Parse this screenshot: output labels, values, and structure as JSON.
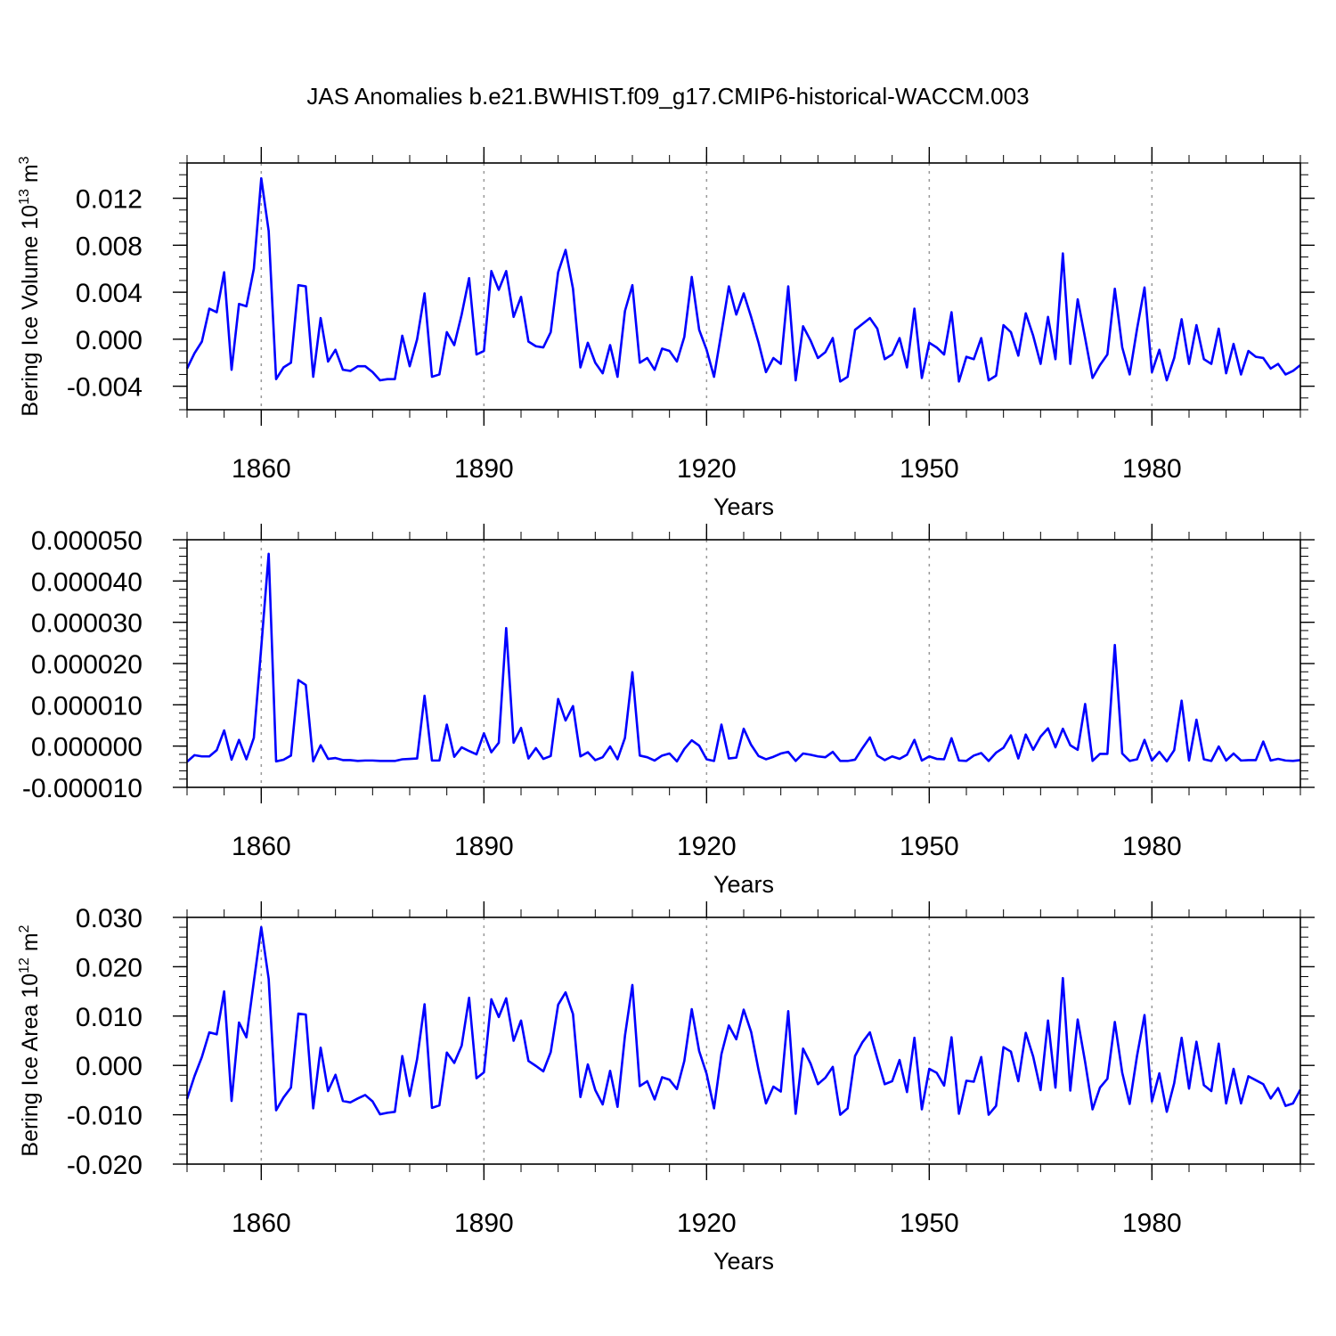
{
  "title": "JAS Anomalies b.e21.BWHIST.f09_g17.CMIP6-historical-WACCM.003",
  "chart_data": [
    {
      "type": "line",
      "title": "",
      "xlabel": "Years",
      "ylabel": {
        "text": "Bering Ice Volume 10",
        "sup": "13",
        "unit": " m",
        "unitsup": "3"
      },
      "xlim": [
        1850,
        2000
      ],
      "ylim": [
        -0.006,
        0.015
      ],
      "yticks": [
        -0.004,
        0.0,
        0.004,
        0.008,
        0.012
      ],
      "ytick_labels": [
        "-0.004",
        "0.000",
        "0.004",
        "0.008",
        "0.012"
      ],
      "ytick_minor_step": 0.001,
      "xticks": [
        1860,
        1890,
        1920,
        1950,
        1980
      ],
      "xtick_labels": [
        "1860",
        "1890",
        "1920",
        "1950",
        "1980"
      ],
      "xtick_minor_step": 5,
      "x_start": 1850,
      "color": "#0000ff",
      "values": [
        -0.0025,
        -0.0012,
        -0.0002,
        0.0026,
        0.0023,
        0.0057,
        -0.0026,
        0.003,
        0.0028,
        0.006,
        0.0137,
        0.0092,
        -0.0034,
        -0.0024,
        -0.002,
        0.0046,
        0.0045,
        -0.0032,
        0.0018,
        -0.0019,
        -0.0009,
        -0.0026,
        -0.0027,
        -0.0023,
        -0.0023,
        -0.0028,
        -0.0035,
        -0.0034,
        -0.0034,
        0.0003,
        -0.0023,
        0.0,
        0.0039,
        -0.0032,
        -0.003,
        0.0006,
        -0.0005,
        0.0021,
        0.0052,
        -0.0013,
        -0.001,
        0.0058,
        0.0042,
        0.0058,
        0.0019,
        0.0036,
        -0.0002,
        -0.0006,
        -0.0007,
        0.0006,
        0.0057,
        0.0076,
        0.0043,
        -0.0024,
        -0.0003,
        -0.002,
        -0.0029,
        -0.0005,
        -0.0032,
        0.0024,
        0.0046,
        -0.002,
        -0.0016,
        -0.0026,
        -0.0008,
        -0.001,
        -0.0019,
        0.0002,
        0.0053,
        0.0008,
        -0.0009,
        -0.0032,
        0.0006,
        0.0045,
        0.0021,
        0.0039,
        0.0019,
        -0.0003,
        -0.0028,
        -0.0016,
        -0.0021,
        0.0045,
        -0.0035,
        0.0011,
        -0.0001,
        -0.0016,
        -0.0011,
        0.0001,
        -0.0036,
        -0.0032,
        0.0008,
        0.0013,
        0.0018,
        0.0009,
        -0.0017,
        -0.0013,
        0.0001,
        -0.0024,
        0.0026,
        -0.0033,
        -0.0003,
        -0.0007,
        -0.0013,
        0.0023,
        -0.0036,
        -0.0015,
        -0.0017,
        0.0001,
        -0.0035,
        -0.0031,
        0.0012,
        0.0006,
        -0.0014,
        0.0022,
        0.0003,
        -0.0021,
        0.0019,
        -0.0017,
        0.0073,
        -0.0021,
        0.0034,
        0.0001,
        -0.0033,
        -0.0022,
        -0.0013,
        0.0043,
        -0.0007,
        -0.003,
        0.0009,
        0.0044,
        -0.0028,
        -0.0009,
        -0.0035,
        -0.0016,
        0.0017,
        -0.0021,
        0.0012,
        -0.0017,
        -0.0021,
        0.0009,
        -0.0029,
        -0.0004,
        -0.003,
        -0.001,
        -0.0015,
        -0.0016,
        -0.0025,
        -0.0021,
        -0.003,
        -0.0027,
        -0.0022
      ]
    },
    {
      "type": "line",
      "title": "",
      "xlabel": "Years",
      "ylabel": {
        "text": "",
        "sup": "",
        "unit": "",
        "unitsup": ""
      },
      "xlim": [
        1850,
        2000
      ],
      "ylim": [
        -1e-05,
        5e-05
      ],
      "yticks": [
        -1e-05,
        0.0,
        1e-05,
        2e-05,
        3e-05,
        4e-05,
        5e-05
      ],
      "ytick_labels": [
        "-0.000010",
        "0.000000",
        "0.000010",
        "0.000020",
        "0.000030",
        "0.000040",
        "0.000050"
      ],
      "ytick_minor_step": 2e-06,
      "xticks": [
        1860,
        1890,
        1920,
        1950,
        1980
      ],
      "xtick_labels": [
        "1860",
        "1890",
        "1920",
        "1950",
        "1980"
      ],
      "xtick_minor_step": 5,
      "x_start": 1850,
      "color": "#0000ff",
      "values": [
        -3.8e-06,
        -2.2e-06,
        -2.5e-06,
        -2.5e-06,
        -1e-06,
        3.8e-06,
        -3.3e-06,
        1.5e-06,
        -3.2e-06,
        2e-06,
        2.4e-05,
        4.66e-05,
        -3.7e-06,
        -3.3e-06,
        -2.3e-06,
        1.6e-05,
        1.48e-05,
        -3.7e-06,
        2e-07,
        -3.1e-06,
        -2.9e-06,
        -3.4e-06,
        -3.4e-06,
        -3.6e-06,
        -3.5e-06,
        -3.5e-06,
        -3.6e-06,
        -3.6e-06,
        -3.6e-06,
        -3.2e-06,
        -3.1e-06,
        -3e-06,
        1.22e-05,
        -3.5e-06,
        -3.5e-06,
        5.2e-06,
        -2.6e-06,
        -3e-07,
        -1.2e-06,
        -2e-06,
        3.1e-06,
        -1.5e-06,
        8e-07,
        2.86e-05,
        8e-07,
        4.4e-06,
        -3e-06,
        -5e-07,
        -3.1e-06,
        -2.4e-06,
        1.14e-05,
        6.2e-06,
        9.7e-06,
        -2.5e-06,
        -1.5e-06,
        -3.4e-06,
        -2.7e-06,
        -1e-07,
        -3.2e-06,
        2e-06,
        1.79e-05,
        -2.3e-06,
        -2.7e-06,
        -3.5e-06,
        -2.3e-06,
        -1.8e-06,
        -3.7e-06,
        -7e-07,
        1.4e-06,
        1e-07,
        -3.2e-06,
        -3.6e-06,
        5.2e-06,
        -3e-06,
        -2.8e-06,
        4.2e-06,
        3e-07,
        -2.4e-06,
        -3.2e-06,
        -2.6e-06,
        -1.8e-06,
        -1.4e-06,
        -3.6e-06,
        -1.8e-06,
        -2.1e-06,
        -2.5e-06,
        -2.7e-06,
        -1.4e-06,
        -3.6e-06,
        -3.6e-06,
        -3.3e-06,
        -5e-07,
        2.1e-06,
        -2.3e-06,
        -3.4e-06,
        -2.5e-06,
        -3.1e-06,
        -2.1e-06,
        1.5e-06,
        -3.5e-06,
        -2.5e-06,
        -3.1e-06,
        -3.2e-06,
        1.9e-06,
        -3.5e-06,
        -3.6e-06,
        -2.3e-06,
        -1.7e-06,
        -3.6e-06,
        -1.6e-06,
        -4e-07,
        2.6e-06,
        -3e-06,
        2.8e-06,
        -9e-07,
        2.3e-06,
        4.3e-06,
        -3e-07,
        4.2e-06,
        2e-07,
        -9e-07,
        1.02e-05,
        -3.6e-06,
        -1.9e-06,
        -1.9e-06,
        2.45e-05,
        -1.8e-06,
        -3.6e-06,
        -3.2e-06,
        1.5e-06,
        -3.5e-06,
        -1.4e-06,
        -3.7e-06,
        -1e-06,
        1.1e-05,
        -3.5e-06,
        6.4e-06,
        -3.2e-06,
        -3.6e-06,
        -1e-07,
        -3.5e-06,
        -1.8e-06,
        -3.5e-06,
        -3.4e-06,
        -3.4e-06,
        1.1e-06,
        -3.5e-06,
        -3.1e-06,
        -3.5e-06,
        -3.6e-06,
        -3.4e-06
      ]
    },
    {
      "type": "line",
      "title": "",
      "xlabel": "Years",
      "ylabel": {
        "text": "Bering Ice Area 10",
        "sup": "12",
        "unit": " m",
        "unitsup": "2"
      },
      "xlim": [
        1850,
        2000
      ],
      "ylim": [
        -0.02,
        0.03
      ],
      "yticks": [
        -0.02,
        -0.01,
        0.0,
        0.01,
        0.02,
        0.03
      ],
      "ytick_labels": [
        "-0.020",
        "-0.010",
        "0.000",
        "0.010",
        "0.020",
        "0.030"
      ],
      "ytick_minor_step": 0.002,
      "xticks": [
        1860,
        1890,
        1920,
        1950,
        1980
      ],
      "xtick_labels": [
        "1860",
        "1890",
        "1920",
        "1950",
        "1980"
      ],
      "xtick_minor_step": 5,
      "x_start": 1850,
      "color": "#0000ff",
      "values": [
        -0.0068,
        -0.0022,
        0.0017,
        0.0067,
        0.0063,
        0.015,
        -0.0072,
        0.0087,
        0.0057,
        0.017,
        0.028,
        0.0175,
        -0.0091,
        -0.0065,
        -0.0045,
        0.0105,
        0.0103,
        -0.0087,
        0.0036,
        -0.0052,
        -0.0019,
        -0.0072,
        -0.0075,
        -0.0067,
        -0.006,
        -0.0073,
        -0.0099,
        -0.0096,
        -0.0094,
        0.0019,
        -0.0062,
        0.0013,
        0.0124,
        -0.0086,
        -0.0081,
        0.0026,
        0.0005,
        0.004,
        0.0137,
        -0.0026,
        -0.0014,
        0.0134,
        0.0098,
        0.0136,
        0.005,
        0.0091,
        0.0009,
        -0.0001,
        -0.0012,
        0.0027,
        0.0123,
        0.0148,
        0.0104,
        -0.0064,
        0.0002,
        -0.005,
        -0.0079,
        -0.0011,
        -0.0084,
        0.006,
        0.0163,
        -0.0042,
        -0.0032,
        -0.0069,
        -0.0024,
        -0.0029,
        -0.0048,
        0.0009,
        0.0114,
        0.0029,
        -0.0017,
        -0.0087,
        0.0023,
        0.0081,
        0.0053,
        0.0113,
        0.0068,
        -0.0009,
        -0.0077,
        -0.0043,
        -0.0053,
        0.011,
        -0.0098,
        0.0034,
        0.0004,
        -0.0038,
        -0.0025,
        -0.0003,
        -0.01,
        -0.0087,
        0.0019,
        0.0047,
        0.0067,
        0.0014,
        -0.0038,
        -0.0032,
        0.0011,
        -0.0054,
        0.0056,
        -0.0089,
        -0.0007,
        -0.0015,
        -0.0041,
        0.0057,
        -0.0098,
        -0.0031,
        -0.0033,
        0.0017,
        -0.01,
        -0.0082,
        0.0037,
        0.0028,
        -0.0032,
        0.0066,
        0.0018,
        -0.005,
        0.0091,
        -0.0045,
        0.0177,
        -0.0051,
        0.0093,
        0.0007,
        -0.0089,
        -0.0045,
        -0.0027,
        0.0088,
        -0.0015,
        -0.0078,
        0.002,
        0.0102,
        -0.0073,
        -0.0016,
        -0.0094,
        -0.0036,
        0.0056,
        -0.0047,
        0.0048,
        -0.004,
        -0.0052,
        0.0044,
        -0.0077,
        -0.0007,
        -0.0077,
        -0.0022,
        -0.003,
        -0.0038,
        -0.0067,
        -0.0046,
        -0.0082,
        -0.0077,
        -0.0049
      ]
    }
  ]
}
